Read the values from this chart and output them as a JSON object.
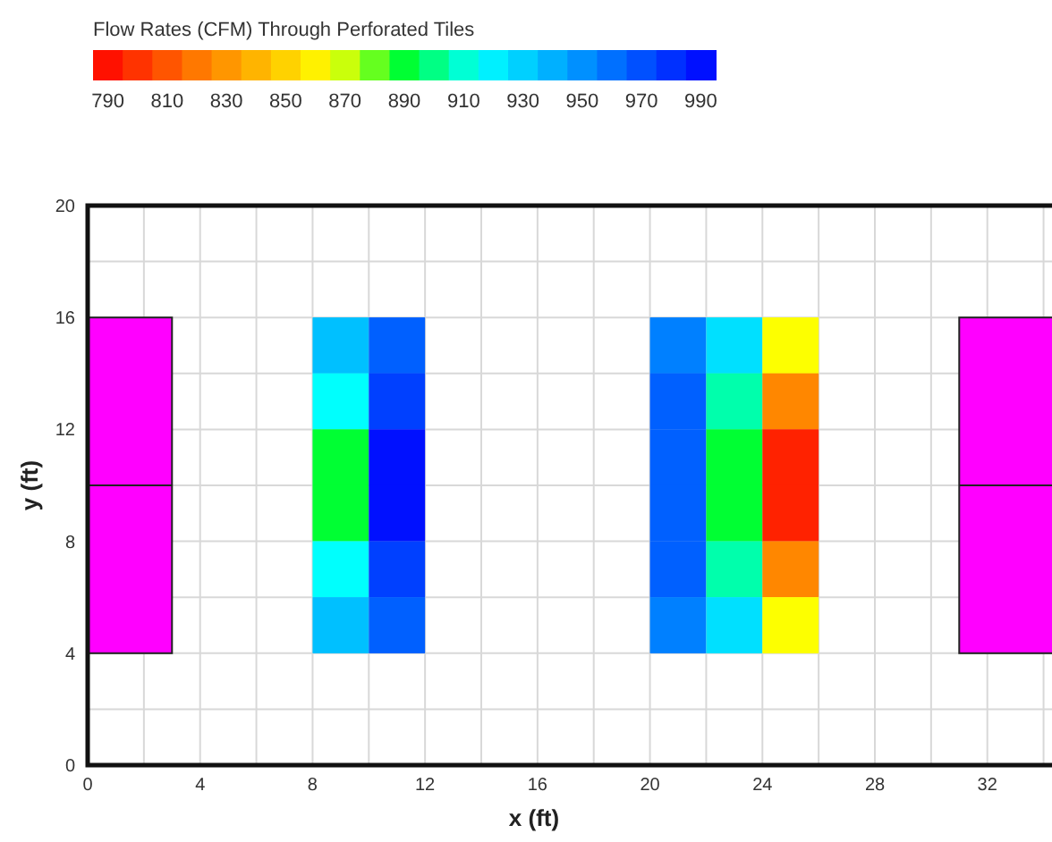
{
  "chart_data": {
    "type": "scatter",
    "clabel": "Flow Rates (CFM) Through Perforated Tiles",
    "xlabel": "x (ft)",
    "ylabel": "y (ft)",
    "marker": "square",
    "grid": true,
    "xlim": [
      0,
      34.3
    ],
    "xticks": [
      0,
      {
        "value": 2,
        "label": null
      },
      4,
      {
        "value": 6,
        "label": null
      },
      8,
      {
        "value": 10,
        "label": null
      },
      12,
      {
        "value": 14,
        "label": null
      },
      16,
      {
        "value": 18,
        "label": null
      },
      20,
      {
        "value": 22,
        "label": null
      },
      24,
      {
        "value": 26,
        "label": null
      },
      28,
      {
        "value": 30,
        "label": null
      },
      32,
      {
        "value": 34,
        "label": null
      }
    ],
    "ylim": [
      0,
      20
    ],
    "yticks": [
      0,
      {
        "value": 2,
        "label": null
      },
      4,
      {
        "value": 6,
        "label": null
      },
      8,
      {
        "value": 10,
        "label": null
      },
      12,
      {
        "value": 14,
        "label": null
      },
      16,
      {
        "value": 18,
        "label": null
      },
      20
    ],
    "clim": [
      785,
      995
    ],
    "cticks": [
      790,
      810,
      830,
      850,
      870,
      890,
      910,
      930,
      950,
      970,
      990
    ],
    "series": [
      {
        "x": [
          9,
          9,
          9,
          9,
          9,
          9,
          11,
          11,
          11,
          11,
          11,
          11,
          21,
          21,
          21,
          21,
          21,
          21,
          23,
          23,
          23,
          23,
          23,
          23,
          25,
          25,
          25,
          25,
          25,
          25
        ],
        "values": [
          15,
          13,
          11,
          9,
          7,
          5,
          15,
          13,
          11,
          9,
          7,
          5,
          15,
          13,
          11,
          9,
          7,
          5,
          15,
          13,
          11,
          9,
          7,
          5,
          15,
          13,
          11,
          9,
          7,
          5
        ],
        "cvalues": [
          935,
          915,
          890,
          890,
          915,
          935,
          965,
          975,
          990,
          990,
          975,
          965,
          955,
          965,
          965,
          965,
          965,
          955,
          925,
          905,
          890,
          890,
          905,
          925,
          865,
          825,
          795,
          795,
          825,
          865
        ]
      }
    ]
  }
}
